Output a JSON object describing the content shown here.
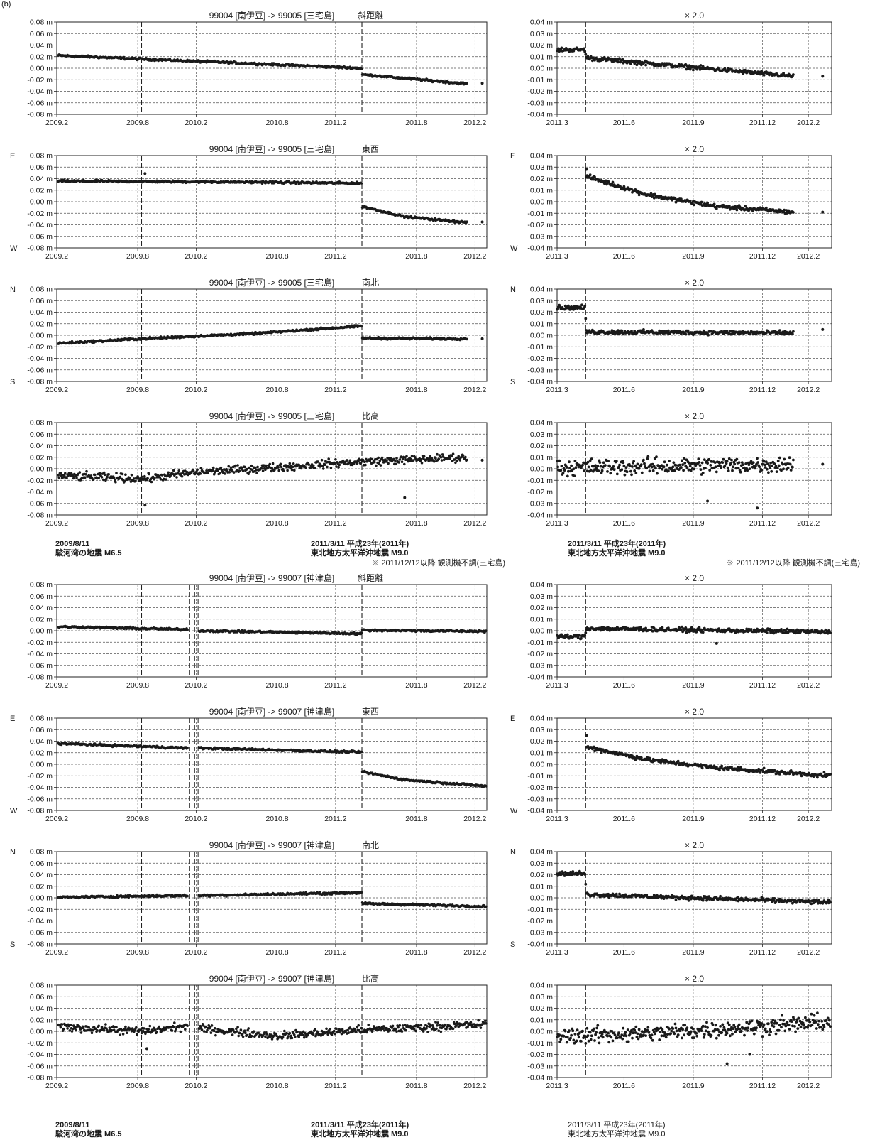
{
  "page_label": "(b)",
  "axes": {
    "long_x_ticks": [
      "2009.2",
      "2009.8",
      "2010.2",
      "2010.8",
      "2011.2",
      "2011.8",
      "2012.2"
    ],
    "zoom_x_ticks": [
      "2011.3",
      "2011.6",
      "2011.9",
      "2011.12",
      "2012.2"
    ],
    "long_y_ticks": [
      "0.08 m",
      "0.06 m",
      "0.04 m",
      "0.02 m",
      "0.00 m",
      "-0.02 m",
      "-0.04 m",
      "-0.06 m",
      "-0.08 m"
    ],
    "zoom_y_ticks": [
      "0.04 m",
      "0.03 m",
      "0.02 m",
      "0.01 m",
      "0.00 m",
      "-0.01 m",
      "-0.02 m",
      "-0.03 m",
      "-0.04 m"
    ],
    "long_ylim": [
      -0.08,
      0.08
    ],
    "zoom_ylim": [
      -0.04,
      0.04
    ],
    "long_xlim": [
      "2009-01-01",
      "2012-02-01"
    ],
    "zoom_xlim": [
      "2011-02-01",
      "2012-02-01"
    ]
  },
  "zoom_title": "× 2.0",
  "notes": {
    "g1_eq1_date": "2009/8/11",
    "g1_eq1_name": "駿河湾の地震 M6.5",
    "g1_eq2_date": "2011/3/11  平成23年(2011年)",
    "g1_eq2_name": "東北地方太平洋沖地震  M9.0",
    "g1_remark": "※ 2011/12/12以降 観測機不調(三宅島)",
    "g1_zoom_eq_date": "2011/3/11  平成23年(2011年)",
    "g1_zoom_eq_name": "東北地方太平洋沖地震  M9.0",
    "g1_zoom_remark": "※ 2011/12/12以降 観測機不調(三宅島)",
    "g2_eq1_date": "2009/8/11",
    "g2_eq1_name": "駿河湾の地震 M6.5",
    "g2_eq2_date": "2011/3/11  平成23年(2011年)",
    "g2_eq2_name": "東北地方太平洋沖地震  M9.0",
    "g2_zoom_eq_date": "2011/3/11  平成23年(2011年)",
    "g2_zoom_eq_name": "東北地方太平洋沖地震  M9.0"
  },
  "chart_data": [
    {
      "type": "scatter",
      "title": "99004 [南伊豆] -> 99005 [三宅島]",
      "component": "斜距離",
      "top_label": "",
      "bottom_label": "",
      "xlim": [
        "2009-01-01",
        "2012-02-01"
      ],
      "ylim": [
        -0.08,
        0.08
      ],
      "grid": true,
      "events": [
        "2009-08-11",
        "2011-03-11"
      ],
      "trend": [
        {
          "x": "2009-01-05",
          "y": 0.022
        },
        {
          "x": "2009-08-10",
          "y": 0.016
        },
        {
          "x": "2010-06-01",
          "y": 0.008
        },
        {
          "x": "2011-03-10",
          "y": 0.0
        },
        {
          "x": "2011-03-12",
          "y": -0.011
        },
        {
          "x": "2011-12-12",
          "y": -0.027
        }
      ],
      "outliers": [
        {
          "x": "2012-01-20",
          "y": -0.026
        }
      ]
    },
    {
      "type": "scatter",
      "title": "× 2.0",
      "component": "",
      "top_label": "",
      "bottom_label": "",
      "xlim": [
        "2011-02-01",
        "2012-02-01"
      ],
      "ylim": [
        -0.04,
        0.04
      ],
      "grid": true,
      "events": [
        "2011-03-11"
      ],
      "trend": [
        {
          "x": "2011-02-01",
          "y": 0.016
        },
        {
          "x": "2011-03-10",
          "y": 0.016
        },
        {
          "x": "2011-03-12",
          "y": 0.009
        },
        {
          "x": "2011-12-12",
          "y": -0.007
        }
      ],
      "outliers": [
        {
          "x": "2012-01-20",
          "y": -0.007
        }
      ]
    },
    {
      "type": "scatter",
      "title": "99004 [南伊豆] -> 99005 [三宅島]",
      "component": "東西",
      "top_label": "E",
      "bottom_label": "W",
      "xlim": [
        "2009-01-01",
        "2012-02-01"
      ],
      "ylim": [
        -0.08,
        0.08
      ],
      "grid": true,
      "events": [
        "2009-08-11",
        "2011-03-11"
      ],
      "trend": [
        {
          "x": "2009-01-05",
          "y": 0.036
        },
        {
          "x": "2010-06-01",
          "y": 0.034
        },
        {
          "x": "2011-03-10",
          "y": 0.032
        },
        {
          "x": "2011-03-12",
          "y": -0.008
        },
        {
          "x": "2011-07-01",
          "y": -0.026
        },
        {
          "x": "2011-12-12",
          "y": -0.036
        }
      ],
      "outliers": [
        {
          "x": "2009-08-20",
          "y": 0.049
        },
        {
          "x": "2012-01-20",
          "y": -0.035
        }
      ]
    },
    {
      "type": "scatter",
      "title": "× 2.0",
      "component": "",
      "top_label": "E",
      "bottom_label": "W",
      "xlim": [
        "2011-02-01",
        "2012-02-01"
      ],
      "ylim": [
        -0.04,
        0.04
      ],
      "grid": true,
      "events": [
        "2011-03-11"
      ],
      "trend": [
        {
          "x": "2011-03-12",
          "y": 0.022
        },
        {
          "x": "2011-06-01",
          "y": 0.006
        },
        {
          "x": "2011-09-01",
          "y": -0.004
        },
        {
          "x": "2011-12-12",
          "y": -0.009
        }
      ],
      "outliers": [
        {
          "x": "2011-03-12",
          "y": 0.028
        },
        {
          "x": "2012-01-20",
          "y": -0.009
        }
      ]
    },
    {
      "type": "scatter",
      "title": "99004 [南伊豆] -> 99005 [三宅島]",
      "component": "南北",
      "top_label": "N",
      "bottom_label": "S",
      "xlim": [
        "2009-01-01",
        "2012-02-01"
      ],
      "ylim": [
        -0.08,
        0.08
      ],
      "grid": true,
      "events": [
        "2009-08-11",
        "2011-03-11"
      ],
      "trend": [
        {
          "x": "2009-01-05",
          "y": -0.014
        },
        {
          "x": "2009-08-10",
          "y": -0.006
        },
        {
          "x": "2010-06-01",
          "y": 0.003
        },
        {
          "x": "2011-03-10",
          "y": 0.016
        },
        {
          "x": "2011-03-12",
          "y": -0.005
        },
        {
          "x": "2011-12-12",
          "y": -0.006
        }
      ],
      "outliers": [
        {
          "x": "2012-01-20",
          "y": -0.006
        }
      ]
    },
    {
      "type": "scatter",
      "title": "× 2.0",
      "component": "",
      "top_label": "N",
      "bottom_label": "S",
      "xlim": [
        "2011-02-01",
        "2012-02-01"
      ],
      "ylim": [
        -0.04,
        0.04
      ],
      "grid": true,
      "events": [
        "2011-03-11"
      ],
      "trend": [
        {
          "x": "2011-02-01",
          "y": 0.024
        },
        {
          "x": "2011-03-10",
          "y": 0.024
        },
        {
          "x": "2011-03-12",
          "y": 0.003
        },
        {
          "x": "2011-12-12",
          "y": 0.002
        }
      ],
      "outliers": [
        {
          "x": "2012-01-20",
          "y": 0.005
        }
      ]
    },
    {
      "type": "scatter",
      "title": "99004 [南伊豆] -> 99005 [三宅島]",
      "component": "比高",
      "top_label": "",
      "bottom_label": "",
      "xlim": [
        "2009-01-01",
        "2012-02-01"
      ],
      "ylim": [
        -0.08,
        0.08
      ],
      "grid": true,
      "events": [
        "2009-08-11",
        "2011-03-11"
      ],
      "trend": [
        {
          "x": "2009-01-05",
          "y": -0.012
        },
        {
          "x": "2009-08-20",
          "y": -0.017
        },
        {
          "x": "2010-01-01",
          "y": -0.006
        },
        {
          "x": "2010-06-01",
          "y": 0.0
        },
        {
          "x": "2011-03-01",
          "y": 0.012
        },
        {
          "x": "2011-12-12",
          "y": 0.02
        }
      ],
      "outliers": [
        {
          "x": "2009-08-20",
          "y": -0.063
        },
        {
          "x": "2011-07-01",
          "y": -0.05
        },
        {
          "x": "2012-01-20",
          "y": 0.015
        }
      ]
    },
    {
      "type": "scatter",
      "title": "× 2.0",
      "component": "",
      "top_label": "",
      "bottom_label": "",
      "xlim": [
        "2011-02-01",
        "2012-02-01"
      ],
      "ylim": [
        -0.04,
        0.04
      ],
      "grid": true,
      "events": [
        "2011-03-11"
      ],
      "trend": [
        {
          "x": "2011-02-01",
          "y": 0.001
        },
        {
          "x": "2011-12-12",
          "y": 0.004
        }
      ],
      "outliers": [
        {
          "x": "2011-08-20",
          "y": -0.028
        },
        {
          "x": "2011-10-25",
          "y": -0.034
        },
        {
          "x": "2012-01-20",
          "y": 0.004
        }
      ]
    },
    {
      "type": "scatter",
      "title": "99004 [南伊豆] -> 99007 [神津島]",
      "component": "斜距離",
      "top_label": "",
      "bottom_label": "",
      "xlim": [
        "2009-01-01",
        "2012-02-01"
      ],
      "ylim": [
        -0.08,
        0.08
      ],
      "grid": true,
      "events": [
        "2009-08-11",
        "2011-03-11"
      ],
      "trend": [
        {
          "x": "2009-01-05",
          "y": 0.007
        },
        {
          "x": "2009-12-20",
          "y": 0.002
        },
        {
          "x": "2010-01-10",
          "y": 0.0
        },
        {
          "x": "2011-03-10",
          "y": -0.005
        },
        {
          "x": "2011-03-12",
          "y": 0.001
        },
        {
          "x": "2012-01-30",
          "y": -0.001
        }
      ],
      "outliers": []
    },
    {
      "type": "scatter",
      "title": "× 2.0",
      "component": "",
      "top_label": "",
      "bottom_label": "",
      "xlim": [
        "2011-02-01",
        "2012-02-01"
      ],
      "ylim": [
        -0.04,
        0.04
      ],
      "grid": true,
      "events": [
        "2011-03-11"
      ],
      "trend": [
        {
          "x": "2011-02-01",
          "y": -0.005
        },
        {
          "x": "2011-03-10",
          "y": -0.005
        },
        {
          "x": "2011-03-12",
          "y": 0.002
        },
        {
          "x": "2012-01-30",
          "y": -0.001
        }
      ],
      "outliers": [
        {
          "x": "2011-09-01",
          "y": -0.011
        }
      ]
    },
    {
      "type": "scatter",
      "title": "99004 [南伊豆] -> 99007 [神津島]",
      "component": "東西",
      "top_label": "E",
      "bottom_label": "W",
      "xlim": [
        "2009-01-01",
        "2012-02-01"
      ],
      "ylim": [
        -0.08,
        0.08
      ],
      "grid": true,
      "events": [
        "2009-08-11",
        "2011-03-11"
      ],
      "trend": [
        {
          "x": "2009-01-05",
          "y": 0.036
        },
        {
          "x": "2009-12-20",
          "y": 0.028
        },
        {
          "x": "2010-01-10",
          "y": 0.028
        },
        {
          "x": "2011-03-10",
          "y": 0.021
        },
        {
          "x": "2011-03-12",
          "y": -0.013
        },
        {
          "x": "2011-07-01",
          "y": -0.027
        },
        {
          "x": "2012-01-30",
          "y": -0.038
        }
      ],
      "outliers": []
    },
    {
      "type": "scatter",
      "title": "× 2.0",
      "component": "",
      "top_label": "E",
      "bottom_label": "W",
      "xlim": [
        "2011-02-01",
        "2012-02-01"
      ],
      "ylim": [
        -0.04,
        0.04
      ],
      "grid": true,
      "events": [
        "2011-03-11"
      ],
      "trend": [
        {
          "x": "2011-03-12",
          "y": 0.015
        },
        {
          "x": "2011-06-01",
          "y": 0.004
        },
        {
          "x": "2011-09-01",
          "y": -0.003
        },
        {
          "x": "2012-01-30",
          "y": -0.01
        }
      ],
      "outliers": [
        {
          "x": "2011-03-12",
          "y": 0.025
        }
      ]
    },
    {
      "type": "scatter",
      "title": "99004 [南伊豆] -> 99007 [神津島]",
      "component": "南北",
      "top_label": "N",
      "bottom_label": "S",
      "xlim": [
        "2009-01-01",
        "2012-02-01"
      ],
      "ylim": [
        -0.08,
        0.08
      ],
      "grid": true,
      "events": [
        "2009-08-11",
        "2011-03-11"
      ],
      "trend": [
        {
          "x": "2009-01-05",
          "y": 0.001
        },
        {
          "x": "2009-08-10",
          "y": 0.003
        },
        {
          "x": "2009-12-20",
          "y": 0.004
        },
        {
          "x": "2010-01-10",
          "y": 0.004
        },
        {
          "x": "2011-03-10",
          "y": 0.009
        },
        {
          "x": "2011-03-12",
          "y": -0.01
        },
        {
          "x": "2012-01-30",
          "y": -0.015
        }
      ],
      "outliers": []
    },
    {
      "type": "scatter",
      "title": "× 2.0",
      "component": "",
      "top_label": "N",
      "bottom_label": "S",
      "xlim": [
        "2011-02-01",
        "2012-02-01"
      ],
      "ylim": [
        -0.04,
        0.04
      ],
      "grid": true,
      "events": [
        "2011-03-11"
      ],
      "trend": [
        {
          "x": "2011-02-01",
          "y": 0.021
        },
        {
          "x": "2011-03-10",
          "y": 0.021
        },
        {
          "x": "2011-03-12",
          "y": 0.003
        },
        {
          "x": "2012-01-30",
          "y": -0.004
        }
      ],
      "outliers": []
    },
    {
      "type": "scatter",
      "title": "99004 [南伊豆] -> 99007 [神津島]",
      "component": "比高",
      "top_label": "",
      "bottom_label": "",
      "xlim": [
        "2009-01-01",
        "2012-02-01"
      ],
      "ylim": [
        -0.08,
        0.08
      ],
      "grid": true,
      "events": [
        "2009-08-11",
        "2011-03-11"
      ],
      "trend": [
        {
          "x": "2009-01-05",
          "y": 0.008
        },
        {
          "x": "2009-08-20",
          "y": 0.0
        },
        {
          "x": "2009-12-20",
          "y": 0.01
        },
        {
          "x": "2010-01-10",
          "y": 0.005
        },
        {
          "x": "2010-08-01",
          "y": -0.008
        },
        {
          "x": "2011-03-01",
          "y": 0.002
        },
        {
          "x": "2012-01-30",
          "y": 0.012
        }
      ],
      "outliers": [
        {
          "x": "2009-08-25",
          "y": -0.03
        }
      ]
    },
    {
      "type": "scatter",
      "title": "× 2.0",
      "component": "",
      "top_label": "",
      "bottom_label": "",
      "xlim": [
        "2011-02-01",
        "2012-02-01"
      ],
      "ylim": [
        -0.04,
        0.04
      ],
      "grid": true,
      "events": [
        "2011-03-11"
      ],
      "trend": [
        {
          "x": "2011-02-01",
          "y": -0.004
        },
        {
          "x": "2011-06-01",
          "y": -0.002
        },
        {
          "x": "2012-01-30",
          "y": 0.008
        }
      ],
      "outliers": [
        {
          "x": "2011-09-15",
          "y": -0.028
        },
        {
          "x": "2011-10-15",
          "y": -0.02
        }
      ]
    }
  ]
}
